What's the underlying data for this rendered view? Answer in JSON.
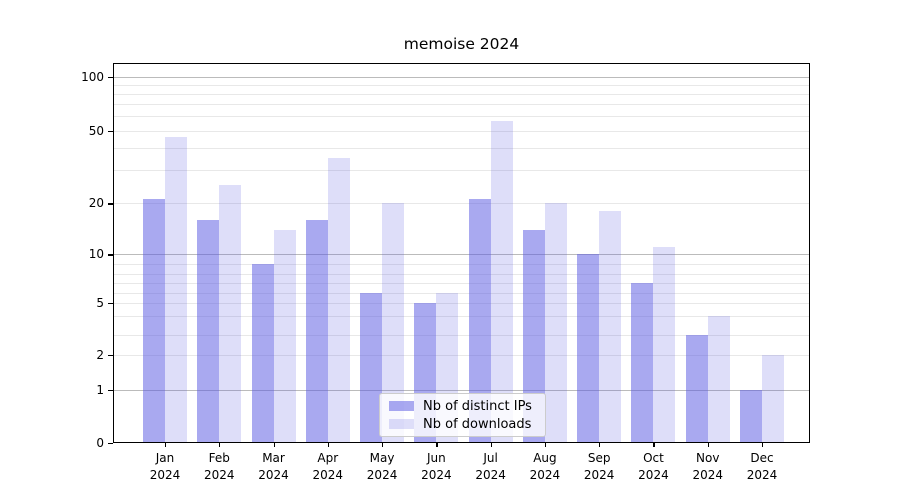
{
  "title": "memoise 2024",
  "chart_data": {
    "type": "bar",
    "title": "memoise 2024",
    "categories": [
      "Jan 2024",
      "Feb 2024",
      "Mar 2024",
      "Apr 2024",
      "May 2024",
      "Jun 2024",
      "Jul 2024",
      "Aug 2024",
      "Sep 2024",
      "Oct 2024",
      "Nov 2024",
      "Dec 2024"
    ],
    "series": [
      {
        "name": "Nb of distinct IPs",
        "color": "rgba(91,91,227,0.52)",
        "values": [
          21,
          16,
          9,
          16,
          6,
          5,
          21,
          14,
          10,
          7,
          3,
          1
        ]
      },
      {
        "name": "Nb of downloads",
        "color": "rgba(91,91,227,0.2)",
        "values": [
          46,
          25,
          14,
          35,
          20,
          6,
          56,
          20,
          18,
          11,
          4,
          2
        ]
      }
    ],
    "yscale": "symlog",
    "ylim": [
      0,
      120
    ],
    "yticks": [
      0,
      1,
      2,
      5,
      10,
      20,
      50,
      100
    ],
    "major_gridlines": [
      1,
      10,
      100
    ],
    "minor_gridlines": [
      2,
      3,
      4,
      5,
      6,
      7,
      8,
      9,
      20,
      30,
      40,
      50,
      60,
      70,
      80,
      90
    ],
    "grid": "horizontal",
    "legend_position": "lower-center"
  },
  "colors": {
    "bar_base": "#5b5be3",
    "grid_major": "#bbbbbb",
    "grid_minor": "#e8e8e8",
    "spine": "#000000",
    "background": "#ffffff",
    "text": "#000000"
  }
}
